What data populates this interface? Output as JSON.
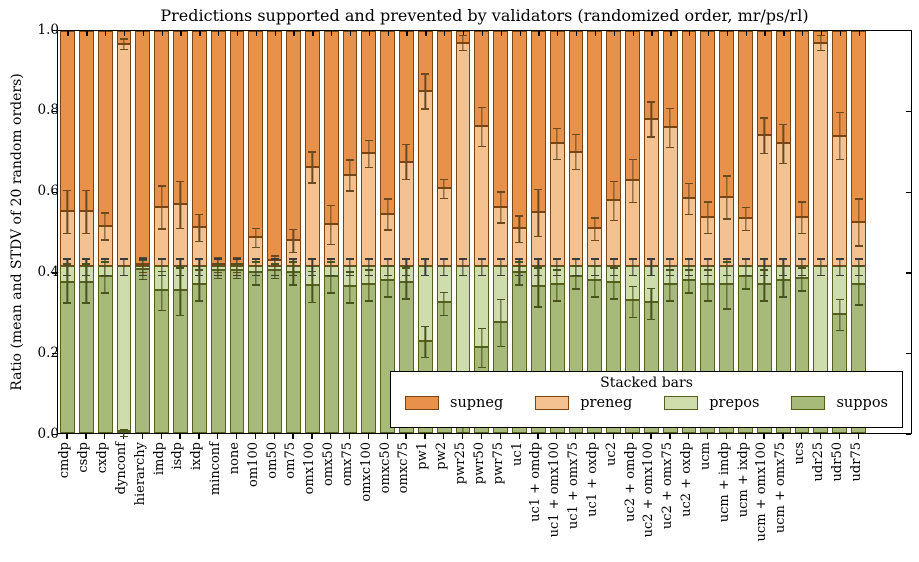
{
  "title": "Predictions supported and prevented by validators (randomized order, mr/ps/rl)",
  "y_axis_label": "Ratio (mean and STDV of 20 random orders)",
  "legend": {
    "title": "Stacked bars",
    "entries": [
      {
        "label": "supneg",
        "color": "#e8914a",
        "border": "#7a4413"
      },
      {
        "label": "preneg",
        "color": "#f4c291",
        "border": "#7a4413"
      },
      {
        "label": "prepos",
        "color": "#cfdcab",
        "border": "#55601f"
      },
      {
        "label": "suppos",
        "color": "#a8ba79",
        "border": "#55601f"
      }
    ]
  },
  "chart_data": {
    "type": "bar",
    "stacked": true,
    "title": "Predictions supported and prevented by validators (randomized order, mr/ps/rl)",
    "xlabel": "",
    "ylabel": "Ratio (mean and STDV of 20 random orders)",
    "ylim": [
      0.0,
      1.0
    ],
    "y_ticks": [
      0.0,
      0.2,
      0.4,
      0.6,
      0.8,
      1.0
    ],
    "grid": false,
    "legend_position": "lower right",
    "legend_title": "Stacked bars",
    "series_order_bottom_to_top": [
      "suppos",
      "prepos",
      "preneg",
      "supneg"
    ],
    "colors": {
      "suppos": "#a8ba79",
      "prepos": "#cfdcab",
      "preneg": "#f4c291",
      "supneg": "#e8914a"
    },
    "categories": [
      "cmdp",
      "csdp",
      "cxdp",
      "dynconf",
      "hierarchy",
      "imdp",
      "isdp",
      "ixdp",
      "minconf",
      "none",
      "om100",
      "om50",
      "om75",
      "omx100",
      "omx50",
      "omx75",
      "omxc100",
      "omxc50",
      "omxc75",
      "pw1",
      "pw2",
      "pwr25",
      "pwr50",
      "pwr75",
      "uc1",
      "uc1 + omdp",
      "uc1 + omx100",
      "uc1 + omx75",
      "uc1 + oxdp",
      "uc2",
      "uc2 + omdp",
      "uc2 + omx100",
      "uc2 + omx75",
      "uc2 + oxdp",
      "ucm",
      "ucm + imdp",
      "ucm + ixdp",
      "ucm + omx100",
      "ucm + omx75",
      "ucs",
      "udr25",
      "udr50",
      "udr75"
    ],
    "cumulative_boundaries": {
      "suppos_top": [
        0.375,
        0.375,
        0.39,
        0.005,
        0.408,
        0.357,
        0.355,
        0.37,
        0.405,
        0.405,
        0.4,
        0.405,
        0.4,
        0.367,
        0.39,
        0.365,
        0.37,
        0.38,
        0.375,
        0.23,
        0.325,
        0.035,
        0.215,
        0.277,
        0.4,
        0.365,
        0.37,
        0.39,
        0.38,
        0.375,
        0.33,
        0.325,
        0.37,
        0.38,
        0.37,
        0.37,
        0.39,
        0.37,
        0.38,
        0.385,
        0.035,
        0.297,
        0.37
      ],
      "prepos_top": [
        0.415,
        0.415,
        0.415,
        0.415,
        0.415,
        0.415,
        0.415,
        0.415,
        0.415,
        0.415,
        0.415,
        0.415,
        0.415,
        0.415,
        0.415,
        0.415,
        0.415,
        0.415,
        0.415,
        0.415,
        0.415,
        0.415,
        0.415,
        0.415,
        0.415,
        0.415,
        0.415,
        0.415,
        0.415,
        0.415,
        0.415,
        0.415,
        0.415,
        0.415,
        0.415,
        0.415,
        0.415,
        0.415,
        0.415,
        0.415,
        0.415,
        0.415,
        0.415
      ],
      "preneg_top": [
        0.552,
        0.552,
        0.516,
        0.967,
        0.42,
        0.563,
        0.569,
        0.513,
        0.42,
        0.42,
        0.488,
        0.43,
        0.48,
        0.662,
        0.52,
        0.642,
        0.696,
        0.546,
        0.675,
        0.85,
        0.609,
        0.97,
        0.763,
        0.563,
        0.509,
        0.55,
        0.721,
        0.7,
        0.509,
        0.579,
        0.629,
        0.781,
        0.76,
        0.585,
        0.538,
        0.588,
        0.534,
        0.741,
        0.721,
        0.538,
        0.97,
        0.74,
        0.526
      ],
      "supneg_top": 1.0
    },
    "stdv_error_bars": {
      "at_suppos_top": [
        0.05,
        0.05,
        0.04,
        0.01,
        0.025,
        0.05,
        0.06,
        0.04,
        0.02,
        0.02,
        0.03,
        0.02,
        0.03,
        0.04,
        0.04,
        0.04,
        0.04,
        0.04,
        0.04,
        0.04,
        0.03,
        0.03,
        0.05,
        0.06,
        0.03,
        0.05,
        0.04,
        0.03,
        0.04,
        0.04,
        0.04,
        0.04,
        0.04,
        0.03,
        0.04,
        0.06,
        0.03,
        0.04,
        0.04,
        0.03,
        0.01,
        0.04,
        0.05
      ],
      "at_prepos_top": [
        0.022,
        0.022,
        0.022,
        0.022,
        0.022,
        0.022,
        0.022,
        0.022,
        0.022,
        0.022,
        0.022,
        0.022,
        0.022,
        0.022,
        0.022,
        0.022,
        0.022,
        0.022,
        0.022,
        0.022,
        0.022,
        0.022,
        0.022,
        0.022,
        0.022,
        0.022,
        0.022,
        0.022,
        0.022,
        0.022,
        0.022,
        0.022,
        0.022,
        0.022,
        0.022,
        0.022,
        0.022,
        0.022,
        0.022,
        0.022,
        0.022,
        0.022,
        0.022
      ],
      "at_preneg_top": [
        0.055,
        0.055,
        0.035,
        0.015,
        0.02,
        0.055,
        0.06,
        0.035,
        0.02,
        0.02,
        0.025,
        0.015,
        0.03,
        0.04,
        0.05,
        0.04,
        0.035,
        0.04,
        0.045,
        0.045,
        0.025,
        0.02,
        0.05,
        0.04,
        0.035,
        0.06,
        0.04,
        0.045,
        0.03,
        0.05,
        0.055,
        0.045,
        0.05,
        0.04,
        0.04,
        0.055,
        0.03,
        0.045,
        0.05,
        0.04,
        0.02,
        0.06,
        0.06
      ]
    }
  },
  "style": {
    "edge_orange": "#7a4413",
    "edge_green": "#55601f",
    "err_color_preneg": "#6a4a1e",
    "err_color_prepos": "#3a3a3a",
    "err_color_suppos": "#49531d"
  },
  "y_tick_labels": [
    "0.0",
    "0.2",
    "0.4",
    "0.6",
    "0.8",
    "1.0"
  ]
}
